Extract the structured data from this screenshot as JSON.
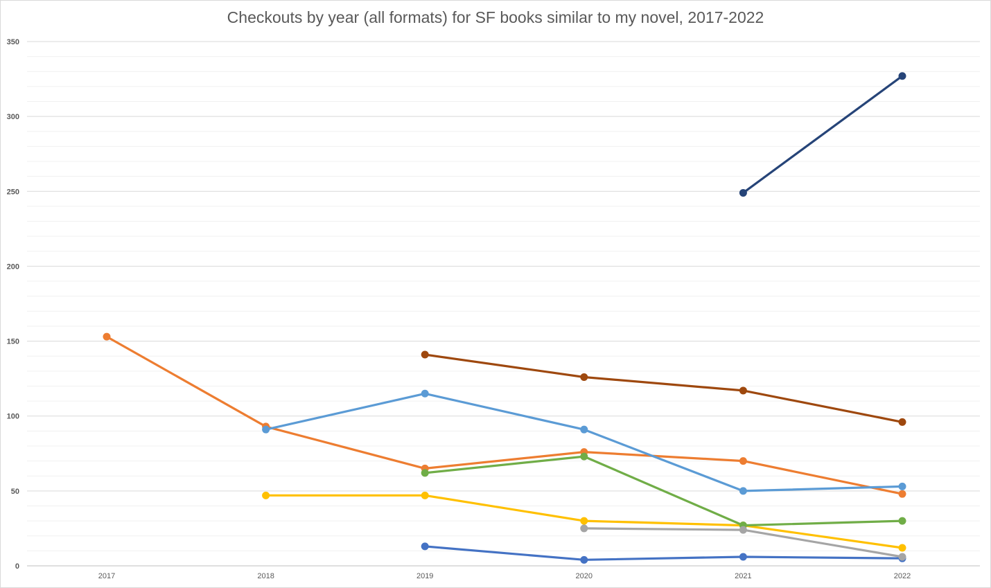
{
  "chart_data": {
    "type": "line",
    "title": "Checkouts by year (all formats) for SF books similar to my novel, 2017-2022",
    "xlabel": "",
    "ylabel": "",
    "categories": [
      "2017",
      "2018",
      "2019",
      "2020",
      "2021",
      "2022"
    ],
    "ylim": [
      0,
      350
    ],
    "yticks": [
      "0",
      "50",
      "100",
      "150",
      "200",
      "250",
      "300",
      "350"
    ],
    "grid": true,
    "legend": "none",
    "series": [
      {
        "color": "#ed7d31",
        "values": [
          153,
          93,
          65,
          76,
          70,
          48
        ]
      },
      {
        "color": "#5b9bd5",
        "values": [
          null,
          91,
          115,
          91,
          50,
          53
        ]
      },
      {
        "color": "#ffc000",
        "values": [
          null,
          47,
          47,
          30,
          27,
          12
        ]
      },
      {
        "color": "#70ad47",
        "values": [
          null,
          null,
          62,
          73,
          27,
          30
        ]
      },
      {
        "color": "#9e480e",
        "values": [
          null,
          null,
          141,
          126,
          117,
          96
        ]
      },
      {
        "color": "#4472c4",
        "values": [
          null,
          null,
          13,
          4,
          6,
          5
        ]
      },
      {
        "color": "#a5a5a5",
        "values": [
          null,
          null,
          null,
          25,
          24,
          6
        ]
      },
      {
        "color": "#264478",
        "values": [
          null,
          null,
          null,
          null,
          249,
          327
        ]
      }
    ]
  }
}
